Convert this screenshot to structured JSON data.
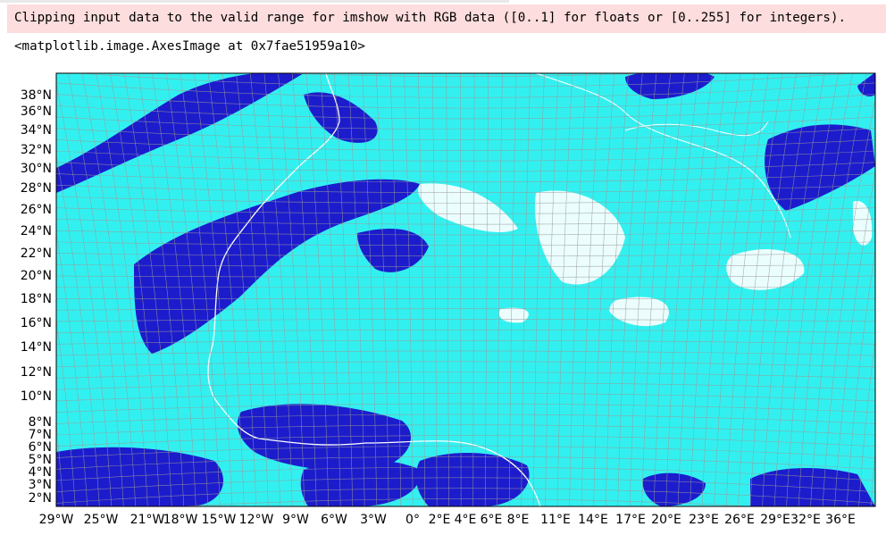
{
  "output": {
    "warning": "Clipping input data to the valid range for imshow with RGB data ([0..1] for floats or [0..255] for integers).",
    "repr": "<matplotlib.image.AxesImage at 0x7fae51959a10>"
  },
  "figure": {
    "lat_labels": [
      "38°N",
      "36°N",
      "34°N",
      "32°N",
      "30°N",
      "28°N",
      "26°N",
      "24°N",
      "22°N",
      "20°N",
      "18°N",
      "16°N",
      "14°N",
      "12°N",
      "10°N",
      "8°N",
      "7°N",
      "6°N",
      "5°N",
      "4°N",
      "3°N",
      "2°N"
    ],
    "lon_labels": [
      "29°W",
      "25°W",
      "21°W",
      "18°W",
      "15°W",
      "12°W",
      "9°W",
      "6°W",
      "3°W",
      "0°",
      "2°E",
      "4°E",
      "6°E",
      "8°E",
      "11°E",
      "14°E",
      "17°E",
      "20°E",
      "23°E",
      "26°E",
      "29°E",
      "32°E",
      "36°E"
    ],
    "colors": {
      "background": "#33f0f0",
      "cloud_dark": "#1c1ccc",
      "cloud_light": "#ffffff",
      "grid": "#9a9a9a",
      "coastline": "#ffffff"
    }
  }
}
